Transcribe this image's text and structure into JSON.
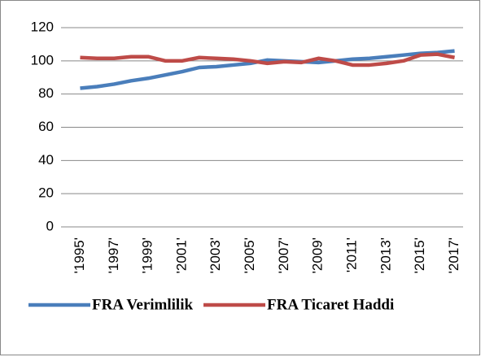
{
  "chart_data": {
    "type": "line",
    "categories": [
      "'1995'",
      null,
      "'1997'",
      null,
      "'1999'",
      null,
      "'2001'",
      null,
      "'2003'",
      null,
      "'2005'",
      null,
      "'2007'",
      null,
      "'2009'",
      null,
      "'2011'",
      null,
      "'2013'",
      null,
      "'2015'",
      null,
      "'2017'"
    ],
    "series": [
      {
        "name": "FRA Verimlilik",
        "color": "#4a7ebb",
        "values": [
          83.5,
          84.5,
          86,
          88,
          89.5,
          91.5,
          93.5,
          96,
          96.5,
          97.5,
          98.5,
          100.5,
          100,
          99.5,
          99,
          100,
          101,
          101.5,
          102.5,
          103.5,
          104.5,
          105,
          106
        ]
      },
      {
        "name": "FRA Ticaret Haddi",
        "color": "#be4b48",
        "values": [
          102,
          101.5,
          101.5,
          102.5,
          102.5,
          100,
          100,
          102,
          101.5,
          101,
          100,
          98.5,
          99.5,
          99,
          101.5,
          100,
          97.5,
          97.5,
          98.5,
          100,
          103.5,
          104,
          102
        ]
      }
    ],
    "ylim": [
      0,
      120
    ],
    "yticks": [
      0,
      20,
      40,
      60,
      80,
      100,
      120
    ],
    "grid": true,
    "legend": "bottom"
  }
}
